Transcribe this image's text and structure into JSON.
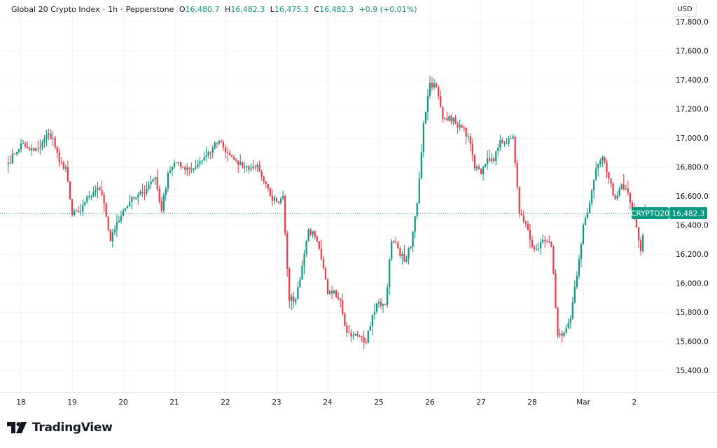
{
  "header": {
    "symbol_name": "Global 20 Crypto Index",
    "interval": "1h",
    "exchange": "Pepperstone",
    "open_label": "O",
    "open": "16,480.7",
    "high_label": "H",
    "high": "16,482.3",
    "low_label": "L",
    "low": "16,475.3",
    "close_label": "C",
    "close": "16,482.3",
    "change": "+0.9 (+0.01%)",
    "currency_button": "USD"
  },
  "price_tag": {
    "symbol": "CRYPTO20",
    "price": "16,482.3"
  },
  "branding": {
    "logo_text": "TradingView"
  },
  "colors": {
    "up": "#089981",
    "down": "#F23645",
    "grid": "#f0f3fa",
    "text": "#131722"
  },
  "chart_data": {
    "type": "candlestick",
    "interval": "1h",
    "ylim": [
      15300,
      17850
    ],
    "yticks": [
      15400,
      15600,
      15800,
      16000,
      16200,
      16400,
      16600,
      16800,
      17000,
      17200,
      17400,
      17600,
      17800
    ],
    "ytick_labels": [
      "15,400.0",
      "15,600.0",
      "15,800.0",
      "16,000.0",
      "16,200.0",
      "16,400.0",
      "16,600.0",
      "16,800.0",
      "17,000.0",
      "17,200.0",
      "17,400.0",
      "17,600.0",
      "17,800.0"
    ],
    "xtick_labels": [
      "18",
      "19",
      "20",
      "21",
      "22",
      "23",
      "24",
      "25",
      "26",
      "27",
      "28",
      "Mar",
      "2"
    ],
    "grid": true,
    "last_price": 16482.3,
    "closes_every_3h": [
      {
        "day": "Feb 17",
        "from_hour": 18,
        "closes": [
          16830,
          16890
        ]
      },
      {
        "day": "Feb 18",
        "from_hour": 0,
        "closes": [
          16960,
          16930,
          16910,
          16930,
          17020,
          17000,
          16830,
          16800
        ]
      },
      {
        "day": "Feb 19",
        "from_hour": 0,
        "closes": [
          16470,
          16490,
          16560,
          16600,
          16655,
          16550,
          16290,
          16420
        ]
      },
      {
        "day": "Feb 20",
        "from_hour": 0,
        "closes": [
          16500,
          16560,
          16590,
          16620,
          16680,
          16730,
          16500,
          16760
        ]
      },
      {
        "day": "Feb 21",
        "from_hour": 0,
        "closes": [
          16830,
          16800,
          16795,
          16790,
          16840,
          16880,
          16930,
          16980
        ]
      },
      {
        "day": "Feb 22",
        "from_hour": 0,
        "closes": [
          16900,
          16870,
          16815,
          16800,
          16790,
          16815,
          16700,
          16600
        ]
      },
      {
        "day": "Feb 23",
        "from_hour": 0,
        "closes": [
          16560,
          16600,
          15880,
          15890,
          16120,
          16370,
          16320,
          16165
        ]
      },
      {
        "day": "Feb 24",
        "from_hour": 0,
        "closes": [
          15925,
          15950,
          15880,
          15660,
          15640,
          15635,
          15590,
          15780
        ]
      },
      {
        "day": "Feb 25",
        "from_hour": 0,
        "closes": [
          15870,
          15850,
          16290,
          16240,
          16150,
          16250,
          16550,
          17100
        ]
      },
      {
        "day": "Feb 26",
        "from_hour": 0,
        "closes": [
          17380,
          17350,
          17130,
          17150,
          17100,
          17070,
          17010,
          16790
        ]
      },
      {
        "day": "Feb 27",
        "from_hour": 0,
        "closes": [
          16750,
          16860,
          16840,
          16985,
          16960,
          17010,
          16480,
          16410
        ]
      },
      {
        "day": "Feb 28",
        "from_hour": 0,
        "closes": [
          16250,
          16240,
          16290,
          16250,
          15640,
          15660,
          15755,
          16050
        ]
      },
      {
        "day": "Mar 1",
        "from_hour": 0,
        "closes": [
          16400,
          16550,
          16790,
          16870,
          16720,
          16580,
          16680,
          16620
        ]
      },
      {
        "day": "Mar 2",
        "from_hour": 0,
        "closes": [
          16455,
          16220,
          16482.3
        ]
      }
    ]
  }
}
